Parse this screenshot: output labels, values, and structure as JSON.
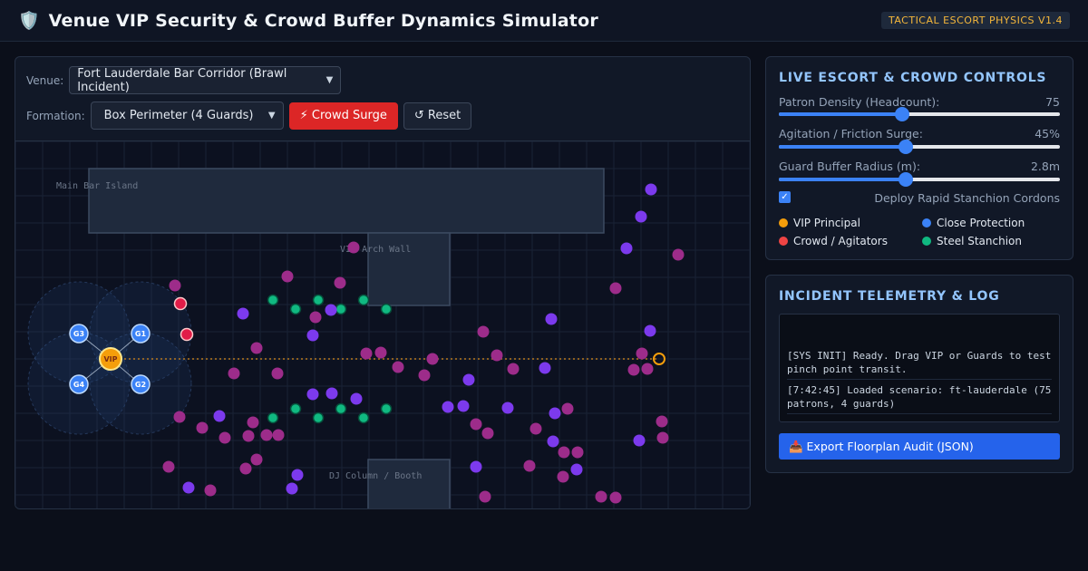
{
  "header": {
    "icon": "shield-icon",
    "title": "Venue VIP Security & Crowd Buffer Dynamics Simulator",
    "version_badge": "TACTICAL ESCORT PHYSICS V1.4"
  },
  "toolbar": {
    "venue_label": "Venue:",
    "venue_value": "Fort Lauderdale Bar Corridor (Brawl Incident)",
    "formation_label": "Formation:",
    "formation_value": "Box Perimeter (4 Guards)",
    "surge_button": "⚡ Crowd Surge",
    "reset_button": "↺ Reset"
  },
  "floorplan": {
    "zones": {
      "main_bar": "Main Bar Island",
      "arch_wall": "VIP Arch Wall",
      "dj_column": "DJ Column / Booth"
    },
    "vip_label": "VIP",
    "guard_labels": [
      "G1",
      "G2",
      "G3",
      "G4"
    ]
  },
  "controls": {
    "title": "LIVE ESCORT & CROWD CONTROLS",
    "sliders": [
      {
        "label": "Patron Density (Headcount):",
        "value_text": "75",
        "level": 0.44
      },
      {
        "label": "Agitation / Friction Surge:",
        "value_text": "45%",
        "level": 0.45
      },
      {
        "label": "Guard Buffer Radius (m):",
        "value_text": "2.8m",
        "level": 0.45
      }
    ],
    "stanchion_label": "Deploy Rapid Stanchion Cordons",
    "stanchion_checked": true,
    "legend": [
      {
        "label": "VIP Principal",
        "color": "#f59e0b"
      },
      {
        "label": "Close Protection",
        "color": "#3b82f6"
      },
      {
        "label": "Crowd / Agitators",
        "color": "#ef4444"
      },
      {
        "label": "Steel Stanchion",
        "color": "#10b981"
      }
    ]
  },
  "telemetry": {
    "title": "INCIDENT TELEMETRY & LOG",
    "entries": [
      "[SYS INIT] Ready. Drag VIP or Guards to test pinch point transit.",
      "[7:42:45] Loaded scenario: ft-lauderdale (75 patrons, 4 guards)"
    ],
    "export_button": "📥 Export Floorplan Audit (JSON)"
  },
  "colors": {
    "accent": "#3b82f6",
    "danger": "#dc2626",
    "vip": "#f59e0b",
    "stanchion": "#10b981",
    "crowd_purple": "#7c3aed",
    "crowd_magenta": "#9d2c8a"
  }
}
